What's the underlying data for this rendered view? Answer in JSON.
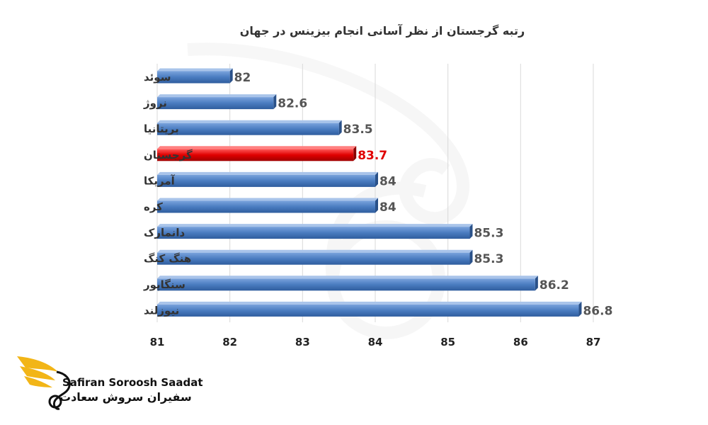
{
  "chart_data": {
    "type": "bar",
    "orientation": "horizontal",
    "title": "رتبه گرجستان از نظر آسانی انجام بیزینس در جهان",
    "categories": [
      "سوئد",
      "نروژ",
      "بریتانیا",
      "گرجستان",
      "آمریکا",
      "کره",
      "دانمارک",
      "هنگ کنگ",
      "سنگاپور",
      "نیوزلند"
    ],
    "values": [
      82,
      82.6,
      83.5,
      83.7,
      84,
      84,
      85.3,
      85.3,
      86.2,
      86.8
    ],
    "value_labels": [
      "82",
      "82.6",
      "83.5",
      "83.7",
      "84",
      "84",
      "85.3",
      "85.3",
      "86.2",
      "86.8"
    ],
    "highlight_index": 3,
    "xlim": [
      81,
      87
    ],
    "x_ticks": [
      "81",
      "82",
      "83",
      "84",
      "85",
      "86",
      "87"
    ],
    "grid": true,
    "bar_color": "#4a7cc0",
    "highlight_color": "#e00000",
    "xlabel": "",
    "ylabel": ""
  },
  "logo": {
    "text_en": "Safiran Soroosh Saadat",
    "text_fa": "سفیران سروش سعادت",
    "accent_color": "#f2b517"
  }
}
